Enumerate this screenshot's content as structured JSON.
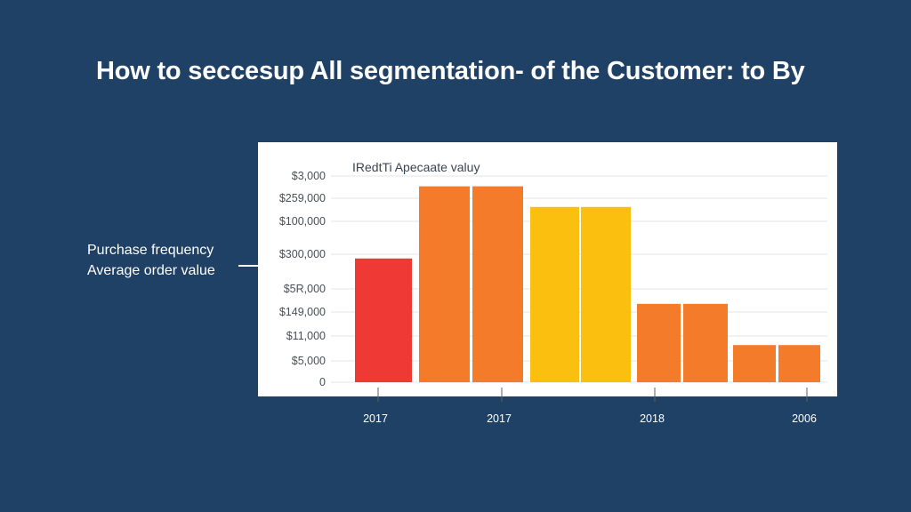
{
  "title": "How to seccesup All segmentation- of the Customer: to By",
  "side_labels": [
    "Purchase frequency",
    "Average order value"
  ],
  "chart_data": {
    "type": "bar",
    "title": "IRedtTi Apecaate valuy",
    "xlabel": "",
    "ylabel": "",
    "y_tick_labels": [
      "$3,000",
      "$259,000",
      "$100,000",
      "$300,000",
      "$5R,000",
      "$149,000",
      "$11,000",
      "$5,000",
      "0"
    ],
    "x_tick_labels": [
      "2017",
      "2017",
      "2018",
      "2006"
    ],
    "values": [
      0.6,
      0.95,
      0.95,
      0.85,
      0.85,
      0.38,
      0.38,
      0.18,
      0.18
    ],
    "value_scale": "fraction of plot height (y axis labels are not readable as a linear scale)",
    "colors": [
      "#ee3935",
      "#f47b2a",
      "#f47b2a",
      "#fbbf10",
      "#fbbf10",
      "#f47b2a",
      "#f47b2a",
      "#f47b2a",
      "#f47b2a"
    ],
    "grid": true,
    "legend": "none"
  }
}
